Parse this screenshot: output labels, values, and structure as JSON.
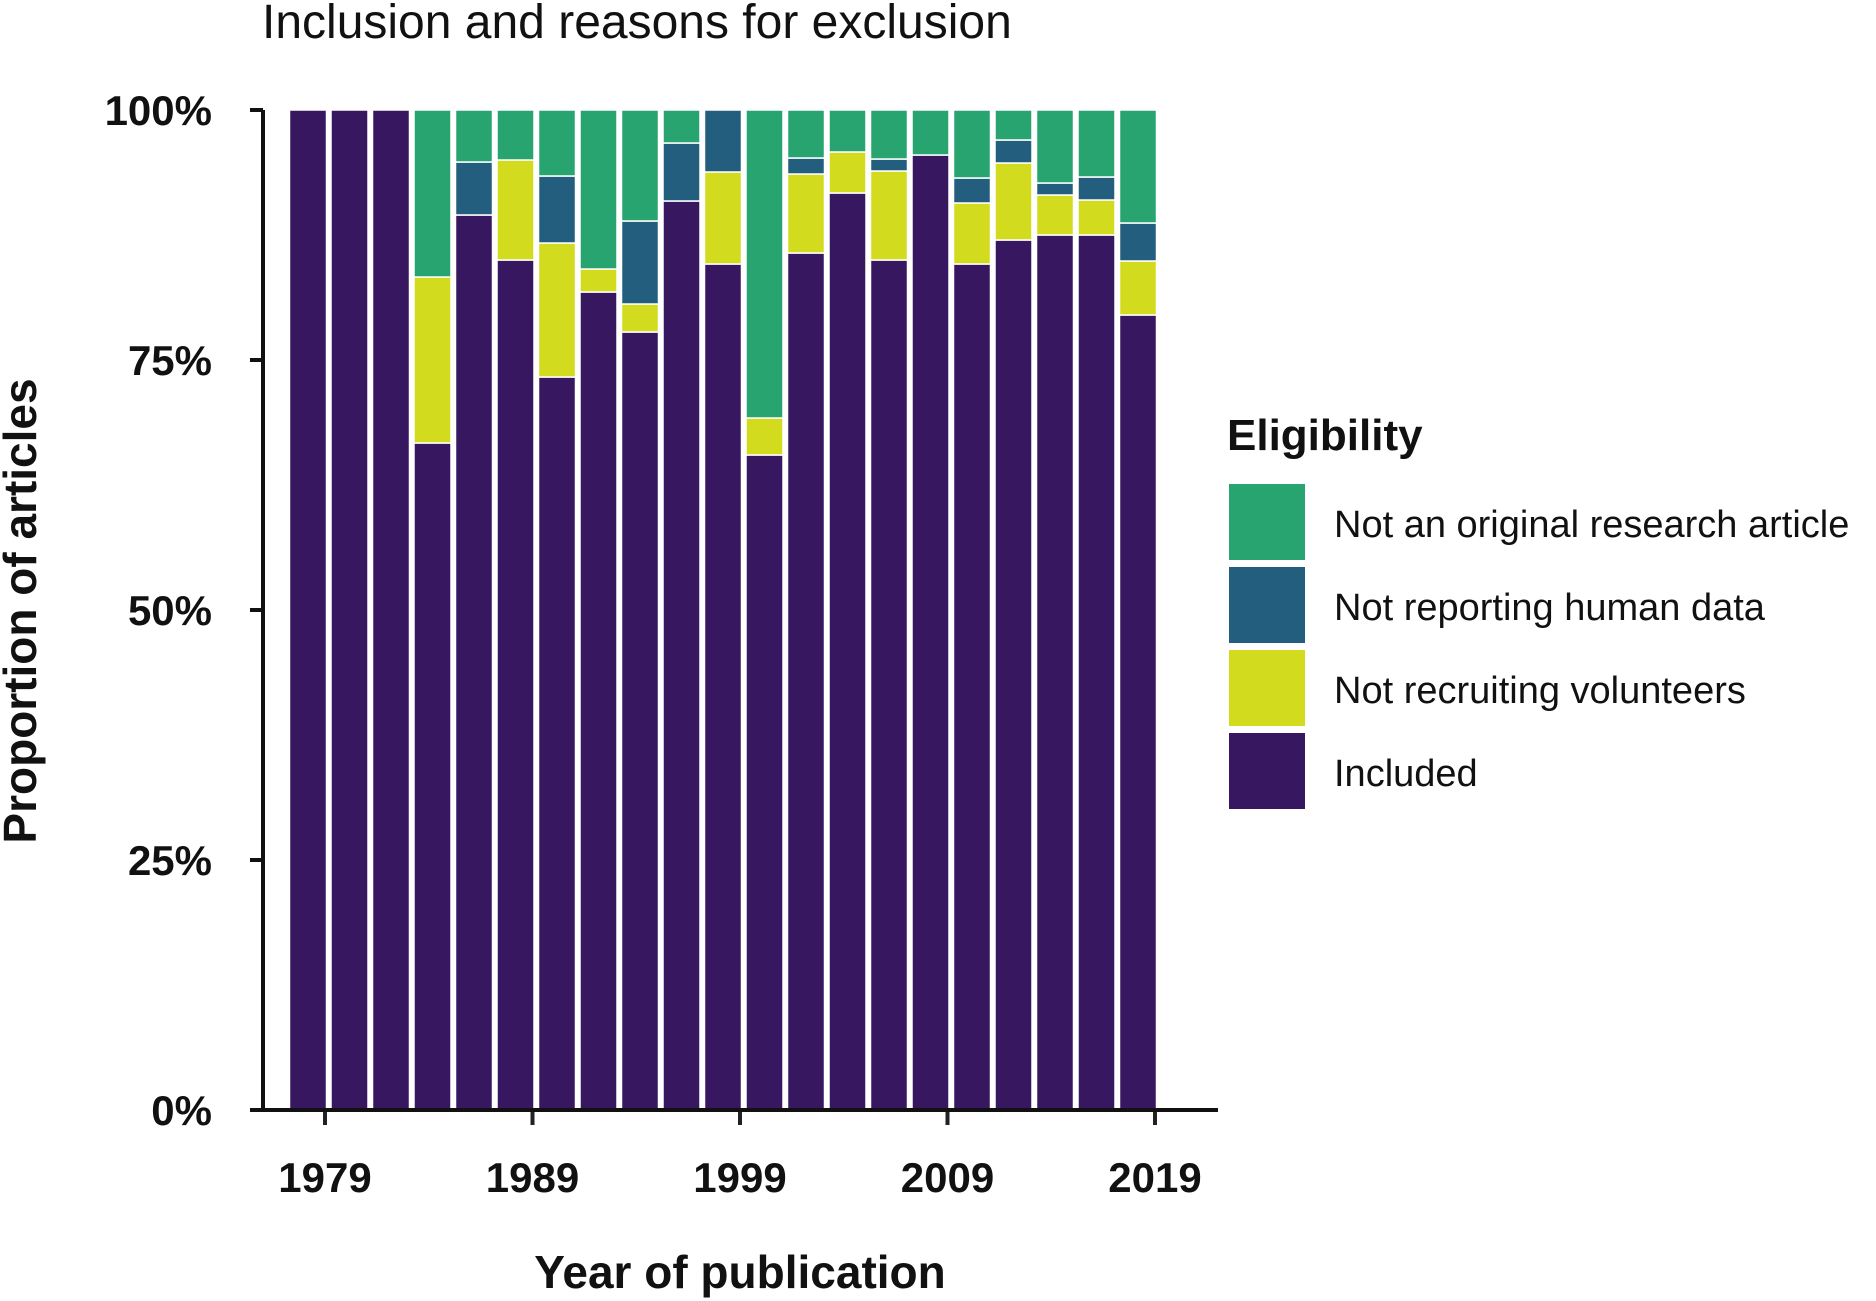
{
  "chart_data": {
    "type": "bar",
    "stacked": true,
    "title": "Inclusion and reasons for exclusion",
    "xlabel": "Year of publication",
    "ylabel": "Proportion of articles",
    "ylim": [
      0,
      1
    ],
    "y_ticks": [
      "0%",
      "25%",
      "50%",
      "75%",
      "100%"
    ],
    "x_ticks": [
      "1979",
      "1989",
      "1999",
      "2009",
      "2019"
    ],
    "x_tick_bar_index": [
      0,
      5,
      10,
      15,
      20
    ],
    "grid": false,
    "legend_position": "right",
    "legend_title": "Eligibility",
    "legend": [
      {
        "name": "Not an original research article",
        "color": "#27A46F"
      },
      {
        "name": "Not reporting human data",
        "color": "#235E7E"
      },
      {
        "name": "Not recruiting volunteers",
        "color": "#D2DB1E"
      },
      {
        "name": "Included",
        "color": "#37175F"
      }
    ],
    "categories": [
      "1979",
      "1981",
      "1983",
      "1985",
      "1987",
      "1989",
      "1991",
      "1993",
      "1995",
      "1997",
      "1999",
      "2001",
      "2003",
      "2005",
      "2007",
      "2009",
      "2011",
      "2013",
      "2015",
      "2017",
      "2019"
    ],
    "series": [
      {
        "name": "Included",
        "color": "#37175F",
        "values": [
          1.0,
          1.0,
          1.0,
          0.667,
          0.895,
          0.85,
          0.733,
          0.818,
          0.778,
          0.909,
          0.846,
          0.655,
          0.857,
          0.917,
          0.85,
          0.955,
          0.846,
          0.87,
          0.875,
          0.875,
          0.795
        ]
      },
      {
        "name": "Not recruiting volunteers",
        "color": "#D2DB1E",
        "values": [
          0,
          0,
          0,
          0.166,
          0,
          0.1,
          0.134,
          0.023,
          0.028,
          0,
          0.092,
          0.037,
          0.079,
          0.041,
          0.089,
          0,
          0.061,
          0.077,
          0.04,
          0.035,
          0.054
        ]
      },
      {
        "name": "Not reporting human data",
        "color": "#235E7E",
        "values": [
          0,
          0,
          0,
          0,
          0.053,
          0,
          0.067,
          0,
          0.083,
          0.058,
          0.062,
          0,
          0.016,
          0,
          0.012,
          0,
          0.025,
          0.023,
          0.012,
          0.023,
          0.038
        ]
      },
      {
        "name": "Not an original research article",
        "color": "#27A46F",
        "values": [
          0,
          0,
          0,
          0.167,
          0.052,
          0.05,
          0.066,
          0.159,
          0.111,
          0.033,
          0,
          0.308,
          0.048,
          0.042,
          0.049,
          0.045,
          0.068,
          0.03,
          0.073,
          0.067,
          0.113
        ]
      }
    ]
  }
}
